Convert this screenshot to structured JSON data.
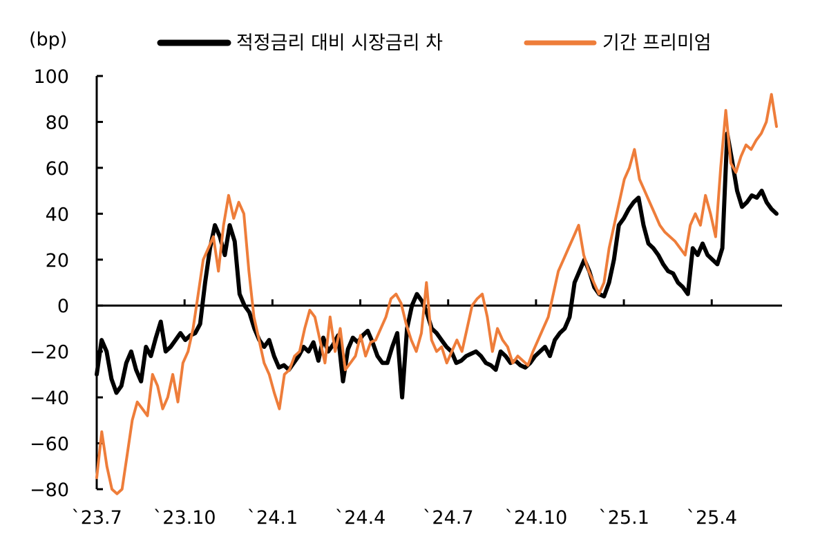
{
  "chart_data": {
    "type": "line",
    "unit_label": "(bp)",
    "ylim": [
      -80,
      100
    ],
    "yticks": [
      100,
      80,
      60,
      40,
      20,
      0,
      -20,
      -40,
      -60,
      -80
    ],
    "x_tick_labels": [
      "`23.7",
      "`23.10",
      "`24.1",
      "`24.4",
      "`24.7",
      "`24.10",
      "`25.1",
      "`25.4"
    ],
    "legend": {
      "placement": "top"
    },
    "series": [
      {
        "name": "적정금리 대비 시장금리 차",
        "color": "#000000",
        "values": [
          -30,
          -15,
          -20,
          -32,
          -38,
          -35,
          -25,
          -20,
          -28,
          -33,
          -18,
          -22,
          -14,
          -7,
          -20,
          -18,
          -15,
          -12,
          -15,
          -13,
          -12,
          -8,
          10,
          25,
          35,
          30,
          22,
          35,
          28,
          5,
          0,
          -3,
          -10,
          -15,
          -18,
          -15,
          -22,
          -27,
          -26,
          -28,
          -25,
          -22,
          -18,
          -20,
          -16,
          -24,
          -14,
          -20,
          -17,
          -13,
          -33,
          -19,
          -14,
          -16,
          -13,
          -11,
          -16,
          -22,
          -25,
          -25,
          -18,
          -12,
          -40,
          -10,
          0,
          5,
          2,
          -3,
          -10,
          -12,
          -15,
          -18,
          -20,
          -25,
          -24,
          -22,
          -21,
          -20,
          -22,
          -25,
          -26,
          -28,
          -20,
          -22,
          -25,
          -24,
          -26,
          -27,
          -25,
          -22,
          -20,
          -18,
          -22,
          -15,
          -12,
          -10,
          -5,
          10,
          15,
          20,
          15,
          8,
          5,
          4,
          10,
          20,
          35,
          38,
          42,
          45,
          47,
          35,
          27,
          25,
          22,
          18,
          15,
          14,
          10,
          8,
          5,
          25,
          22,
          27,
          22,
          20,
          18,
          25,
          75,
          63,
          50,
          43,
          45,
          48,
          47,
          50,
          45,
          42,
          40
        ]
      },
      {
        "name": "기간 프리미엄",
        "color": "#EE7D3A",
        "values": [
          -75,
          -55,
          -70,
          -80,
          -82,
          -80,
          -65,
          -50,
          -42,
          -45,
          -48,
          -30,
          -35,
          -45,
          -40,
          -30,
          -42,
          -25,
          -20,
          -10,
          5,
          20,
          25,
          30,
          15,
          35,
          48,
          38,
          45,
          40,
          15,
          -5,
          -15,
          -25,
          -30,
          -38,
          -45,
          -30,
          -28,
          -22,
          -20,
          -10,
          -2,
          -5,
          -15,
          -25,
          -5,
          -20,
          -10,
          -28,
          -25,
          -22,
          -13,
          -22,
          -16,
          -15,
          -10,
          -5,
          3,
          5,
          1,
          -8,
          -15,
          -20,
          -12,
          10,
          -15,
          -20,
          -18,
          -25,
          -20,
          -15,
          -20,
          -10,
          0,
          3,
          5,
          -5,
          -20,
          -10,
          -15,
          -18,
          -25,
          -22,
          -24,
          -26,
          -20,
          -15,
          -10,
          -5,
          5,
          15,
          20,
          25,
          30,
          35,
          22,
          15,
          10,
          5,
          10,
          25,
          35,
          45,
          55,
          60,
          68,
          55,
          50,
          45,
          40,
          35,
          32,
          30,
          28,
          25,
          22,
          35,
          40,
          35,
          48,
          40,
          30,
          60,
          85,
          62,
          58,
          65,
          70,
          68,
          72,
          75,
          80,
          92,
          78
        ]
      }
    ]
  }
}
